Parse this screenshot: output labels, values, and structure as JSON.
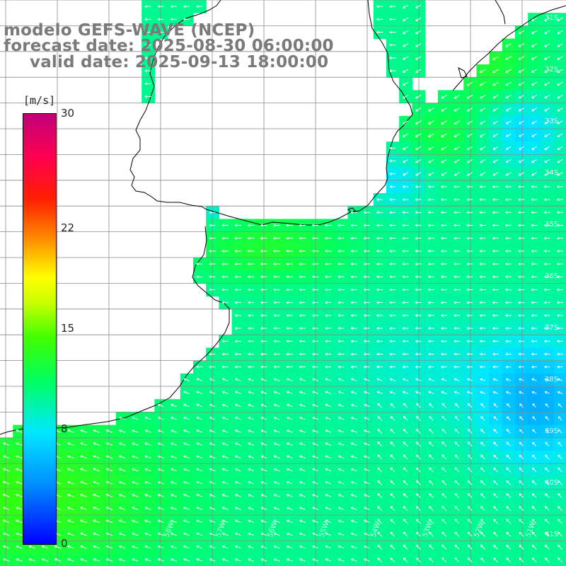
{
  "title": {
    "line1": "modelo GEFS-WAVE (NCEP)",
    "line2": "forecast date: 2025-08-30 06:00:00",
    "line3": "valid date: 2025-09-13 18:00:00"
  },
  "colorbar": {
    "units": "[m/s]",
    "ticks": [
      {
        "label": "30",
        "value": 30
      },
      {
        "label": "22",
        "value": 22
      },
      {
        "label": "15",
        "value": 15
      },
      {
        "label": "8",
        "value": 8
      },
      {
        "label": "0",
        "value": 0
      }
    ],
    "min": 0,
    "max": 30
  },
  "map": {
    "lat_labels": [
      "31S",
      "32S",
      "33S",
      "34S",
      "35S",
      "36S",
      "37S",
      "38S",
      "39S",
      "40S",
      "41S"
    ],
    "lon_labels": [
      "58W",
      "57W",
      "56W",
      "55W",
      "54W",
      "53W",
      "52W",
      "51W"
    ],
    "wind_direction": "from east / south-east (arrows point west to north-west)",
    "field_colors": {
      "low_speed": "#0a55ff",
      "mid_speed": "#00e6ff",
      "high_speed": "#22ee22"
    }
  }
}
